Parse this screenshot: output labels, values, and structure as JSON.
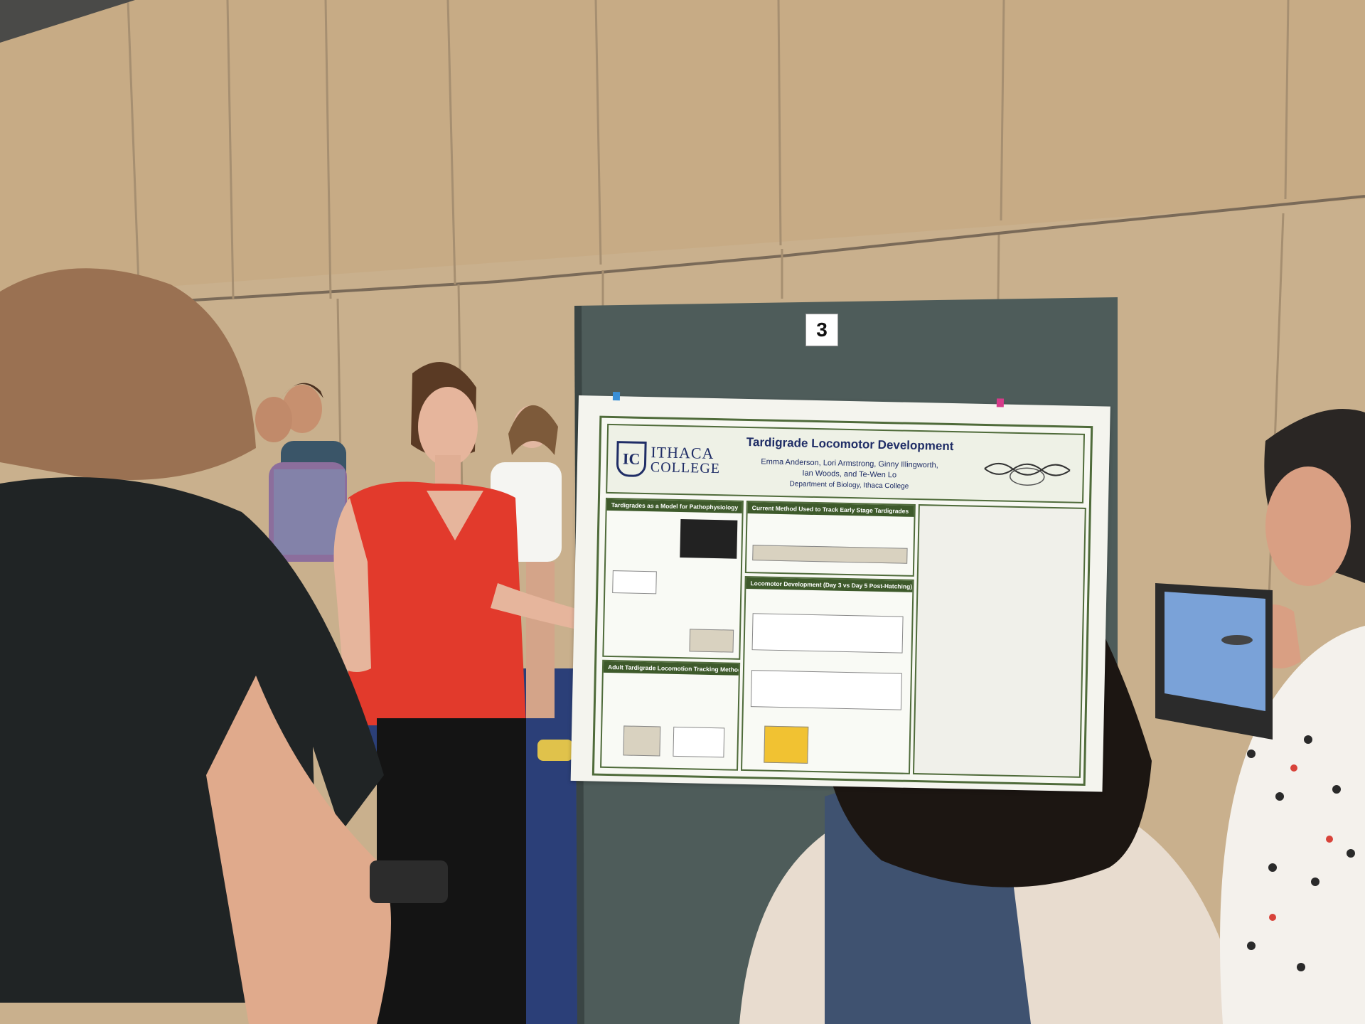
{
  "booth": {
    "number": "3"
  },
  "poster": {
    "college_line1": "ITHACA",
    "college_line2": "COLLEGE",
    "title": "Tardigrade Locomotor Development",
    "authors_line1": "Emma Anderson, Lori Armstrong, Ginny Illingworth,",
    "authors_line2": "Ian Woods, and Te-Wen Lo",
    "department": "Department of Biology, Ithaca College",
    "panels": {
      "model": "Tardigrades as a Model for Pathophysiology",
      "current_method": "Current Method  Used to Track Early Stage Tardigrades",
      "locomotor": "Locomotor Development (Day 3 vs Day 5 Post-Hatching)",
      "tracking": "Adult Tardigrade Locomotion Tracking Methods"
    }
  },
  "colors": {
    "wall": "#c8ae8a",
    "panel_board": "#4e5c5a",
    "poster_green": "#3e5a2b",
    "carpet": "#2b3f78",
    "red_top": "#e23a2c"
  }
}
